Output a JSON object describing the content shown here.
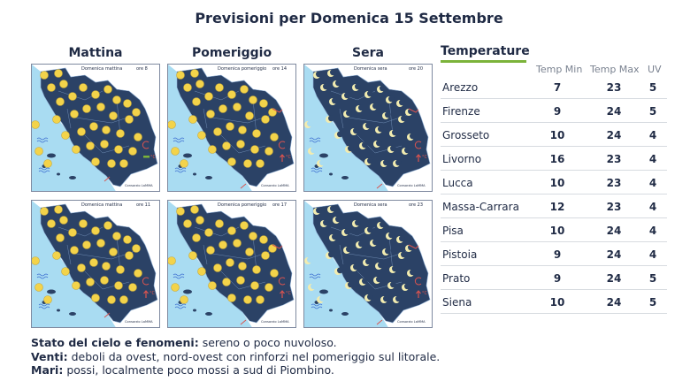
{
  "title": "Previsioni per Domenica 15 Settembre",
  "columns": [
    "Mattina",
    "Pomeriggio",
    "Sera"
  ],
  "maps": [
    {
      "label": "Domenica mattina",
      "time": "ore 8",
      "type": "sun",
      "wind": "calm",
      "tempTrend": "steady",
      "credit": "Consorzio LaMMA"
    },
    {
      "label": "Domenica pomeriggio",
      "time": "ore 14",
      "type": "sun",
      "wind": "sea",
      "tempTrend": "up",
      "credit": "Consorzio LaMMA"
    },
    {
      "label": "Domenica sera",
      "time": "ore 20",
      "type": "moon",
      "wind": "sea",
      "tempTrend": "up",
      "credit": "Consorzio LaMMA"
    },
    {
      "label": "Domenica mattina",
      "time": "ore 11",
      "type": "sun",
      "wind": "calm",
      "tempTrend": "up",
      "credit": "Consorzio LaMMA"
    },
    {
      "label": "Domenica pomeriggio",
      "time": "ore 17",
      "type": "sun",
      "wind": "sea",
      "tempTrend": "up",
      "credit": "Consorzio LaMMA"
    },
    {
      "label": "Domenica sera",
      "time": "ore 23",
      "type": "moon",
      "wind": "sea",
      "tempTrend": "up",
      "credit": "Consorzio LaMMA"
    }
  ],
  "temperatures": {
    "title": "Temperature",
    "headers": {
      "min": "Temp Min",
      "max": "Temp Max",
      "uv": "UV"
    },
    "rows": [
      {
        "city": "Arezzo",
        "min": "7",
        "max": "23",
        "uv": "5"
      },
      {
        "city": "Firenze",
        "min": "9",
        "max": "24",
        "uv": "5"
      },
      {
        "city": "Grosseto",
        "min": "10",
        "max": "24",
        "uv": "4"
      },
      {
        "city": "Livorno",
        "min": "16",
        "max": "23",
        "uv": "4"
      },
      {
        "city": "Lucca",
        "min": "10",
        "max": "23",
        "uv": "4"
      },
      {
        "city": "Massa-Carrara",
        "min": "12",
        "max": "23",
        "uv": "4"
      },
      {
        "city": "Pisa",
        "min": "10",
        "max": "24",
        "uv": "4"
      },
      {
        "city": "Pistoia",
        "min": "9",
        "max": "24",
        "uv": "4"
      },
      {
        "city": "Prato",
        "min": "9",
        "max": "24",
        "uv": "5"
      },
      {
        "city": "Siena",
        "min": "10",
        "max": "24",
        "uv": "5"
      }
    ]
  },
  "notes": {
    "sky_label": "Stato del cielo e fenomeni:",
    "sky_text": "sereno o poco nuvoloso.",
    "wind_label": "Venti:",
    "wind_text": "deboli da ovest, nord-ovest con rinforzi nel pomeriggio sul litorale.",
    "sea_label": "Mari:",
    "sea_text": "possi, localmente poco mossi a sud di Piombino."
  },
  "colors": {
    "land": "#2b4266",
    "sea": "#a9dcf2",
    "sun": "#f3d34a",
    "moon": "#f2ecb0",
    "accent": "#7bb33a",
    "symbol": "#d9534f"
  }
}
